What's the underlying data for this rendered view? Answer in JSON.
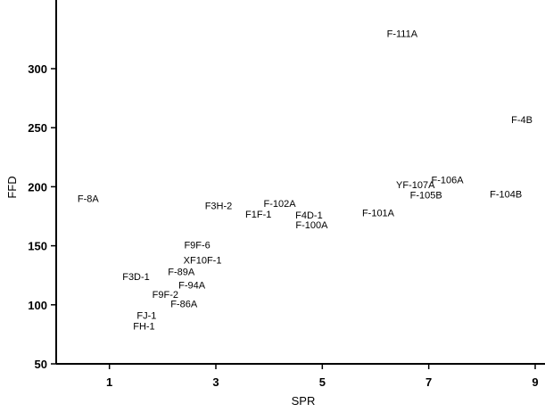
{
  "chart_data": {
    "type": "scatter",
    "title": "",
    "xlabel": "SPR",
    "ylabel": "FFD",
    "xlim": [
      0,
      9.2
    ],
    "ylim": [
      50,
      350
    ],
    "xticks": [
      1,
      3,
      5,
      7,
      9
    ],
    "yticks": [
      50,
      100,
      150,
      200,
      250,
      300
    ],
    "marker": "text-label",
    "points": [
      {
        "label": "F-111A",
        "x": 6.5,
        "y": 330
      },
      {
        "label": "F-4B",
        "x": 8.75,
        "y": 257
      },
      {
        "label": "F-106A",
        "x": 7.35,
        "y": 206
      },
      {
        "label": "YF-107A",
        "x": 6.75,
        "y": 202
      },
      {
        "label": "F-105B",
        "x": 6.95,
        "y": 193
      },
      {
        "label": "F-104B",
        "x": 8.45,
        "y": 194
      },
      {
        "label": "F-101A",
        "x": 6.05,
        "y": 178
      },
      {
        "label": "F-8A",
        "x": 0.6,
        "y": 190
      },
      {
        "label": "F3H-2",
        "x": 3.05,
        "y": 184
      },
      {
        "label": "F-102A",
        "x": 4.2,
        "y": 186
      },
      {
        "label": "F1F-1",
        "x": 3.8,
        "y": 177
      },
      {
        "label": "F4D-1",
        "x": 4.75,
        "y": 176
      },
      {
        "label": "F-100A",
        "x": 4.8,
        "y": 168
      },
      {
        "label": "F9F-6",
        "x": 2.65,
        "y": 151
      },
      {
        "label": "XF10F-1",
        "x": 2.75,
        "y": 138
      },
      {
        "label": "F3D-1",
        "x": 1.5,
        "y": 124
      },
      {
        "label": "F-89A",
        "x": 2.35,
        "y": 128
      },
      {
        "label": "F-94A",
        "x": 2.55,
        "y": 117
      },
      {
        "label": "F9F-2",
        "x": 2.05,
        "y": 109
      },
      {
        "label": "F-86A",
        "x": 2.4,
        "y": 101
      },
      {
        "label": "FJ-1",
        "x": 1.7,
        "y": 91
      },
      {
        "label": "FH-1",
        "x": 1.65,
        "y": 82
      }
    ]
  }
}
